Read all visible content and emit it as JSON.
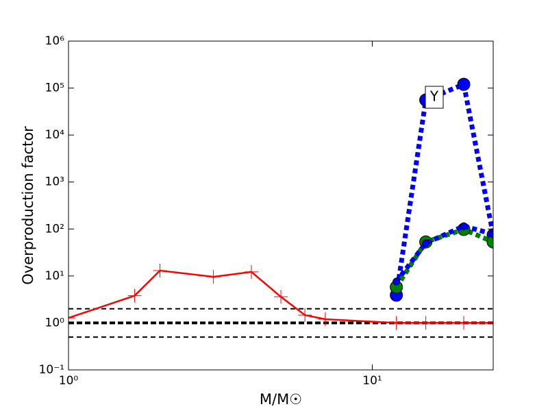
{
  "chart_data": {
    "type": "line",
    "xlabel": "M/M☉",
    "ylabel": "Overproduction factor",
    "annotation": "Y",
    "xscale": "log",
    "yscale": "log",
    "xlim": [
      1,
      25
    ],
    "ylim": [
      0.1,
      1000000
    ],
    "xticks": [
      {
        "value": 1,
        "label": "10⁰"
      },
      {
        "value": 10,
        "label": "10¹"
      }
    ],
    "yticks": [
      {
        "value": 0.1,
        "label": "10⁻¹"
      },
      {
        "value": 1,
        "label": "10⁰"
      },
      {
        "value": 10,
        "label": "10¹"
      },
      {
        "value": 100,
        "label": "10²"
      },
      {
        "value": 1000,
        "label": "10³"
      },
      {
        "value": 10000,
        "label": "10⁴"
      },
      {
        "value": 100000,
        "label": "10⁵"
      },
      {
        "value": 1000000,
        "label": "10⁶"
      }
    ],
    "hlines": [
      2,
      1,
      0.5
    ],
    "series": [
      {
        "color": "#ff0000",
        "linestyle": "solid",
        "marker": "plus",
        "x": [
          1,
          1.65,
          2,
          3,
          4,
          5,
          6,
          7,
          12,
          15,
          20,
          25
        ],
        "values": [
          1.28,
          3.8,
          13,
          9.6,
          12.2,
          3.6,
          1.47,
          1.2,
          1.0,
          1.0,
          1.0,
          1.0
        ]
      },
      {
        "color": "#0000ff",
        "linestyle": "dotted",
        "marker": "big-circle",
        "x": [
          12,
          15,
          20,
          25
        ],
        "values": [
          3.9,
          55700,
          120000,
          75
        ]
      },
      {
        "color": "#008000",
        "linestyle": "dotted",
        "marker": "big-circle",
        "x": [
          12,
          15,
          20,
          25
        ],
        "values": [
          5.8,
          53,
          98,
          53
        ]
      },
      {
        "color": "#0000ff",
        "linestyle": "dotted",
        "marker": "small-circle",
        "x": [
          12,
          15,
          20,
          25
        ],
        "values": [
          7.6,
          50,
          115,
          78
        ]
      }
    ]
  }
}
